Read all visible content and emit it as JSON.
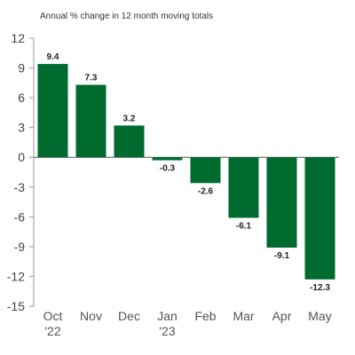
{
  "chart_data": {
    "type": "bar",
    "subtitle": "Annual % change in 12 month moving totals",
    "categories": [
      "Oct",
      "Nov",
      "Dec",
      "Jan",
      "Feb",
      "Mar",
      "Apr",
      "May"
    ],
    "category_sublabels": [
      "'22",
      "",
      "",
      "'23",
      "",
      "",
      "",
      ""
    ],
    "values": [
      9.4,
      7.3,
      3.2,
      -0.3,
      -2.6,
      -6.1,
      -9.1,
      -12.3
    ],
    "value_labels": [
      "9.4",
      "7.3",
      "3.2",
      "-0.3",
      "-2.6",
      "-6.1",
      "-9.1",
      "-12.3"
    ],
    "ylim": [
      -15,
      12
    ],
    "yticks": [
      12,
      9,
      6,
      3,
      0,
      -3,
      -6,
      -9,
      -12,
      -15
    ],
    "ytick_labels": [
      "12",
      "9",
      "6",
      "3",
      "0",
      "-3",
      "-6",
      "-9",
      "-12",
      "-15"
    ],
    "grid": false,
    "colors": {
      "bar": "#006b2e",
      "axis": "#999999",
      "zero_line": "#555555"
    }
  }
}
